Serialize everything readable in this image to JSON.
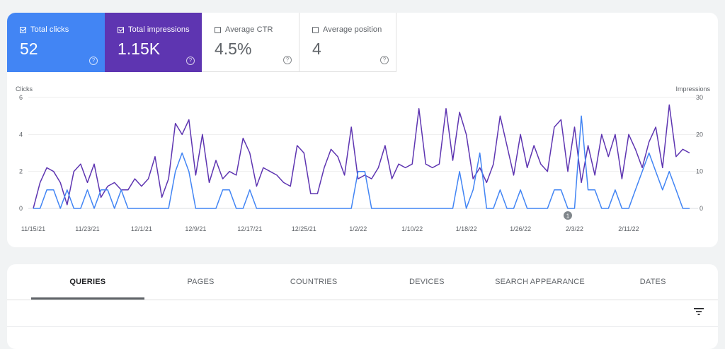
{
  "metrics": {
    "clicks": {
      "label": "Total clicks",
      "value": "52",
      "checked": true,
      "color": "#4285f4"
    },
    "impressions": {
      "label": "Total impressions",
      "value": "1.15K",
      "checked": true,
      "color": "#5e35b1"
    },
    "ctr": {
      "label": "Average CTR",
      "value": "4.5%",
      "checked": false
    },
    "position": {
      "label": "Average position",
      "value": "4",
      "checked": false
    }
  },
  "chart_data": {
    "type": "line",
    "left_axis_label": "Clicks",
    "right_axis_label": "Impressions",
    "left_ticks": [
      "0",
      "2",
      "4",
      "6"
    ],
    "right_ticks": [
      "0",
      "10",
      "20",
      "30"
    ],
    "ylim_left": [
      0,
      6
    ],
    "ylim_right": [
      0,
      30
    ],
    "x_tick_labels": [
      "11/15/21",
      "11/23/21",
      "12/1/21",
      "12/9/21",
      "12/17/21",
      "12/25/21",
      "1/2/22",
      "1/10/22",
      "1/18/22",
      "1/26/22",
      "2/3/22",
      "2/11/22"
    ],
    "x_tick_interval_days": 8,
    "annotation": {
      "label": "1",
      "day": 79
    },
    "grid": true,
    "series": [
      {
        "name": "Total clicks",
        "axis": "left",
        "color": "#4285f4",
        "values": [
          0,
          0,
          1,
          1,
          0,
          1,
          0,
          0,
          1,
          0,
          1,
          1,
          0,
          1,
          0,
          0,
          0,
          0,
          0,
          0,
          0,
          2,
          3,
          2,
          0,
          0,
          0,
          0,
          1,
          1,
          0,
          0,
          1,
          0,
          0,
          0,
          0,
          0,
          0,
          0,
          0,
          0,
          0,
          0,
          0,
          0,
          0,
          0,
          2,
          2,
          0,
          0,
          0,
          0,
          0,
          0,
          0,
          0,
          0,
          0,
          0,
          0,
          0,
          2,
          0,
          1,
          3,
          0,
          0,
          1,
          0,
          0,
          1,
          0,
          0,
          0,
          0,
          1,
          1,
          0,
          0,
          5,
          1,
          1,
          0,
          0,
          1,
          0,
          0,
          1,
          2,
          3,
          2,
          1,
          2,
          1,
          0,
          0
        ]
      },
      {
        "name": "Total impressions",
        "axis": "right",
        "color": "#5e35b1",
        "values": [
          0,
          7,
          11,
          10,
          7,
          1,
          10,
          12,
          7,
          12,
          3,
          6,
          7,
          5,
          5,
          8,
          6,
          8,
          14,
          3,
          8,
          23,
          20,
          24,
          9,
          20,
          7,
          13,
          8,
          10,
          9,
          19,
          15,
          6,
          11,
          10,
          9,
          7,
          6,
          17,
          15,
          4,
          4,
          11,
          16,
          14,
          9,
          22,
          8,
          9,
          8,
          11,
          17,
          8,
          12,
          11,
          12,
          27,
          12,
          11,
          12,
          27,
          13,
          26,
          20,
          8,
          11,
          7,
          12,
          25,
          17,
          9,
          20,
          11,
          17,
          12,
          10,
          22,
          24,
          10,
          22,
          7,
          17,
          9,
          20,
          14,
          20,
          8,
          20,
          16,
          11,
          18,
          22,
          11,
          28,
          14,
          16,
          15
        ]
      }
    ]
  },
  "tabs": [
    "QUERIES",
    "PAGES",
    "COUNTRIES",
    "DEVICES",
    "SEARCH APPEARANCE",
    "DATES"
  ],
  "active_tab": "QUERIES"
}
